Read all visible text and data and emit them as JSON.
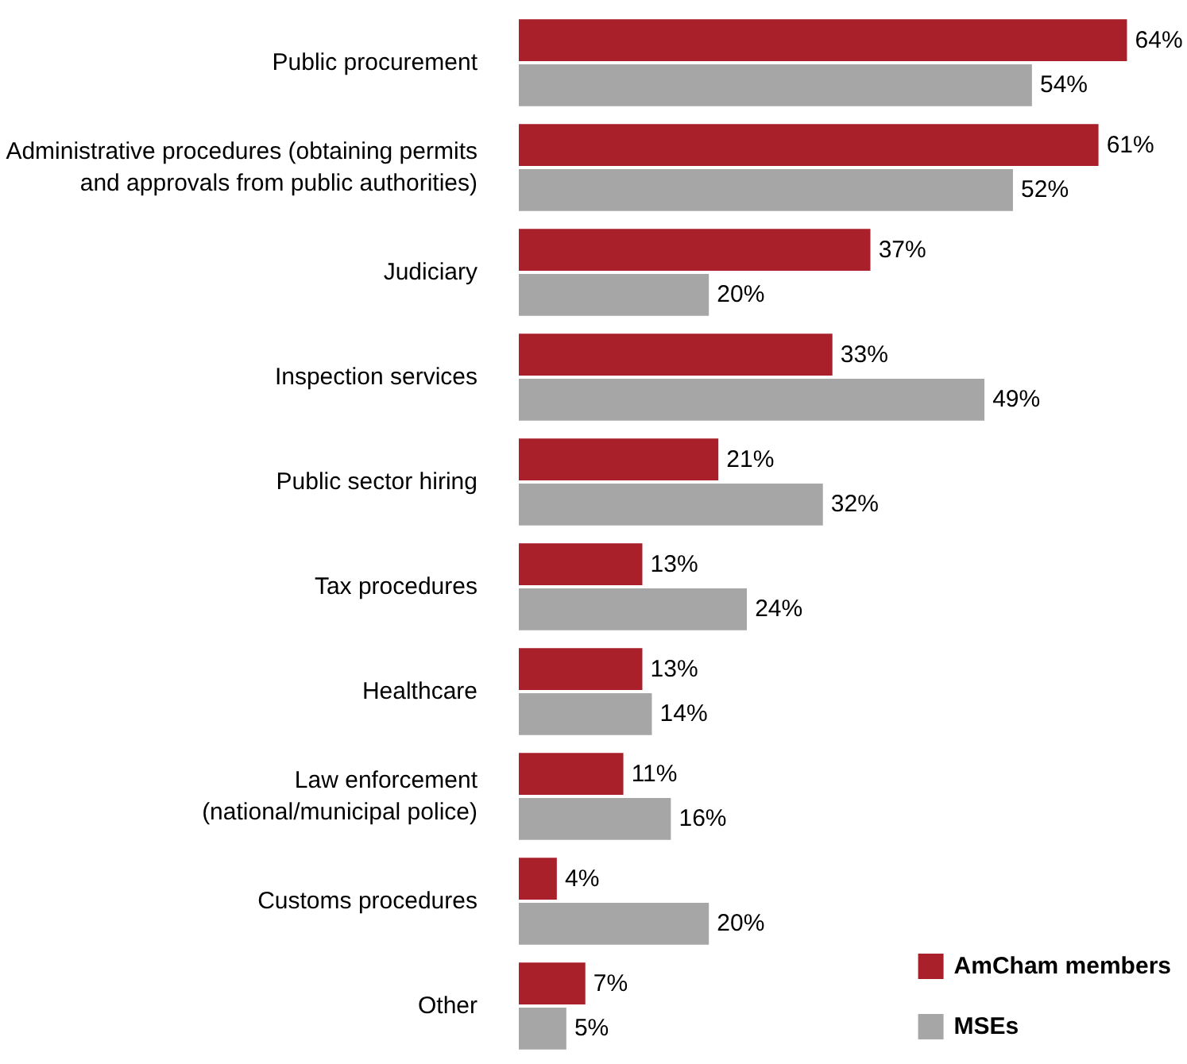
{
  "chart_data": {
    "type": "bar",
    "orientation": "horizontal",
    "categories": [
      "Public procurement",
      "Administrative procedures (obtaining permits\nand approvals from public authorities)",
      "Judiciary",
      "Inspection services",
      "Public sector hiring",
      "Tax procedures",
      "Healthcare",
      "Law enforcement\n(national/municipal police)",
      "Customs procedures",
      "Other"
    ],
    "series": [
      {
        "name": "AmCham members",
        "color": "#a91f2a",
        "values": [
          64,
          61,
          37,
          33,
          21,
          13,
          13,
          11,
          4,
          7
        ],
        "value_labels": [
          "64%",
          "61%",
          "37%",
          "33%",
          "21%",
          "13%",
          "13%",
          "11%",
          "4%",
          "7%"
        ]
      },
      {
        "name": "MSEs",
        "color": "#a6a6a6",
        "values": [
          54,
          52,
          20,
          49,
          32,
          24,
          14,
          16,
          20,
          5
        ],
        "value_labels": [
          "54%",
          "52%",
          "20%",
          "49%",
          "32%",
          "24%",
          "14%",
          "16%",
          "20%",
          "5%"
        ]
      }
    ],
    "legend": "bottom right",
    "grid": false
  }
}
